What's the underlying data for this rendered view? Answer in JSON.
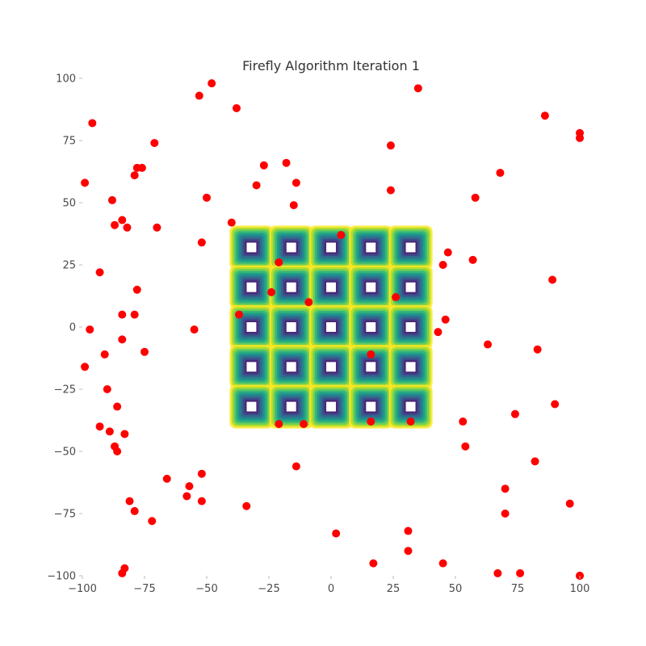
{
  "chart_data": {
    "type": "scatter",
    "title": "Firefly Algorithm Iteration 1",
    "xlabel": "",
    "ylabel": "",
    "xlim": [
      -100,
      100
    ],
    "ylim": [
      -100,
      100
    ],
    "xticks": [
      -100,
      -75,
      -50,
      -25,
      0,
      25,
      50,
      75,
      100
    ],
    "yticks": [
      -100,
      -75,
      -50,
      -25,
      0,
      25,
      50,
      75,
      100
    ],
    "xtick_labels": [
      "−100",
      "−75",
      "−50",
      "−25",
      "0",
      "25",
      "50",
      "75",
      "100"
    ],
    "ytick_labels": [
      "−100",
      "−75",
      "−50",
      "−25",
      "0",
      "25",
      "50",
      "75",
      "100"
    ],
    "grid": false,
    "point_color": "#ff0000",
    "contour_colormap": [
      "#fde725",
      "#b5de2b",
      "#6ece58",
      "#35b779",
      "#1f9e89",
      "#26828e",
      "#31688e",
      "#3e4989",
      "#482878",
      "#440154"
    ],
    "contour_centers_x": [
      -32,
      -16,
      0,
      16,
      32
    ],
    "contour_centers_y": [
      32,
      16,
      0,
      -16,
      -32
    ],
    "contour_half_width": 5.5,
    "points": [
      [
        -53,
        93
      ],
      [
        -48,
        98
      ],
      [
        -38,
        88
      ],
      [
        -96,
        82
      ],
      [
        -71,
        74
      ],
      [
        -99,
        58
      ],
      [
        -88,
        51
      ],
      [
        -78,
        64
      ],
      [
        -76,
        64
      ],
      [
        -79,
        61
      ],
      [
        -70,
        40
      ],
      [
        -82,
        40
      ],
      [
        -84,
        43
      ],
      [
        -87,
        41
      ],
      [
        -50,
        52
      ],
      [
        -52,
        34
      ],
      [
        -40,
        42
      ],
      [
        -27,
        65
      ],
      [
        -30,
        57
      ],
      [
        -18,
        66
      ],
      [
        -14,
        58
      ],
      [
        -15,
        49
      ],
      [
        -93,
        22
      ],
      [
        -78,
        15
      ],
      [
        -84,
        5
      ],
      [
        -79,
        5
      ],
      [
        -37,
        5
      ],
      [
        -24,
        14
      ],
      [
        -21,
        26
      ],
      [
        -9,
        10
      ],
      [
        -97,
        -1
      ],
      [
        -55,
        -1
      ],
      [
        -84,
        -5
      ],
      [
        -75,
        -10
      ],
      [
        -91,
        -11
      ],
      [
        -99,
        -16
      ],
      [
        -90,
        -25
      ],
      [
        -86,
        -32
      ],
      [
        -93,
        -40
      ],
      [
        -89,
        -42
      ],
      [
        -87,
        -48
      ],
      [
        -86,
        -50
      ],
      [
        -83,
        -43
      ],
      [
        -66,
        -61
      ],
      [
        -57,
        -64
      ],
      [
        -58,
        -68
      ],
      [
        -52,
        -70
      ],
      [
        -52,
        -59
      ],
      [
        -34,
        -72
      ],
      [
        -81,
        -70
      ],
      [
        -79,
        -74
      ],
      [
        -72,
        -78
      ],
      [
        -83,
        -97
      ],
      [
        -84,
        -99
      ],
      [
        -21,
        -39
      ],
      [
        -11,
        -39
      ],
      [
        -14,
        -56
      ],
      [
        4,
        37
      ],
      [
        24,
        73
      ],
      [
        24,
        55
      ],
      [
        35,
        96
      ],
      [
        45,
        25
      ],
      [
        47,
        30
      ],
      [
        26,
        12
      ],
      [
        46,
        3
      ],
      [
        43,
        -2
      ],
      [
        16,
        -11
      ],
      [
        16,
        -38
      ],
      [
        32,
        -38
      ],
      [
        53,
        -38
      ],
      [
        54,
        -48
      ],
      [
        63,
        -7
      ],
      [
        74,
        -35
      ],
      [
        83,
        -9
      ],
      [
        89,
        19
      ],
      [
        57,
        27
      ],
      [
        58,
        52
      ],
      [
        68,
        62
      ],
      [
        86,
        85
      ],
      [
        100,
        78
      ],
      [
        100,
        76
      ],
      [
        90,
        -31
      ],
      [
        82,
        -54
      ],
      [
        70,
        -65
      ],
      [
        70,
        -75
      ],
      [
        96,
        -71
      ],
      [
        2,
        -83
      ],
      [
        31,
        -82
      ],
      [
        31,
        -90
      ],
      [
        17,
        -95
      ],
      [
        45,
        -95
      ],
      [
        67,
        -99
      ],
      [
        76,
        -99
      ],
      [
        100,
        -100
      ],
      [
        100,
        -100
      ]
    ]
  }
}
